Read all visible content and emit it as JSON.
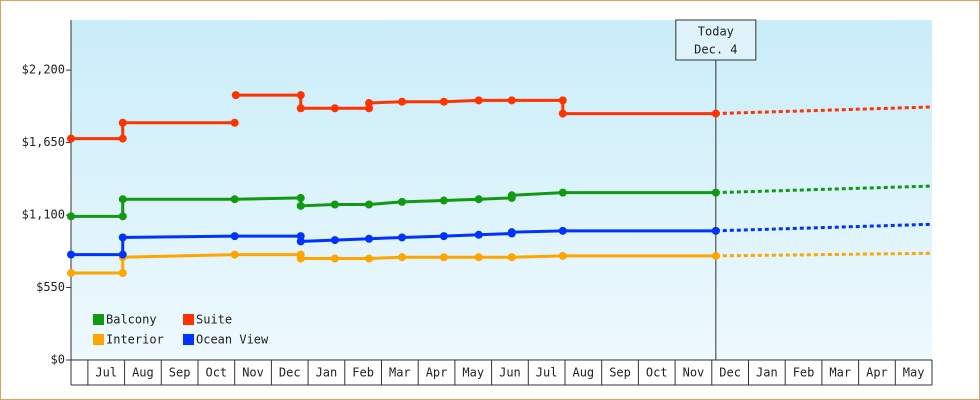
{
  "chart_data": {
    "type": "line",
    "xlim": [
      -0.46,
      23
    ],
    "ylim": [
      0,
      2580
    ],
    "yticks": [
      {
        "value": 0,
        "label": "$0"
      },
      {
        "value": 550,
        "label": "$550"
      },
      {
        "value": 1100,
        "label": "$1,100"
      },
      {
        "value": 1650,
        "label": "$1,650"
      },
      {
        "value": 2200,
        "label": "$2,200"
      }
    ],
    "xticks": [
      0,
      1,
      2,
      3,
      4,
      5,
      6,
      7,
      8,
      9,
      10,
      11,
      12,
      13,
      14,
      15,
      16,
      17,
      18,
      19,
      20,
      21,
      22,
      23
    ],
    "categories": [
      "Jul",
      "Aug",
      "Sep",
      "Oct",
      "Nov",
      "Dec",
      "Jan",
      "Feb",
      "Mar",
      "Apr",
      "May",
      "Jun",
      "Jul",
      "Aug",
      "Sep",
      "Oct",
      "Nov",
      "Dec",
      "Jan",
      "Feb",
      "Mar",
      "Apr",
      "May"
    ],
    "legend": "lower left",
    "annotation": {
      "lines": [
        "Today",
        "Dec. 4"
      ],
      "x": 17.11
    },
    "series": [
      {
        "name": "Balcony",
        "color": "#119911",
        "x": [
          -0.46,
          0.95,
          0.95,
          4.0,
          5.8,
          5.8,
          6.73,
          7.66,
          8.56,
          9.7,
          10.65,
          11.55,
          11.55,
          12.94,
          17.11
        ],
        "values": [
          1090,
          1090,
          1220,
          1220,
          1230,
          1170,
          1180,
          1180,
          1200,
          1210,
          1220,
          1230,
          1250,
          1270,
          1270
        ],
        "forecast_x": [
          17.11,
          23
        ],
        "forecast_values": [
          1270,
          1320
        ]
      },
      {
        "name": "Suite",
        "color": "#ff3300",
        "x": [
          -0.46,
          0.95,
          0.95,
          4.0,
          null,
          4.03,
          5.8,
          5.8,
          6.73,
          7.66,
          7.66,
          8.56,
          9.7,
          10.65,
          11.55,
          12.94,
          12.94,
          17.11
        ],
        "values": [
          1680,
          1680,
          1800,
          1800,
          null,
          2010,
          2010,
          1910,
          1910,
          1910,
          1950,
          1960,
          1960,
          1970,
          1970,
          1970,
          1870,
          1870
        ],
        "forecast_x": [
          17.11,
          23
        ],
        "forecast_values": [
          1870,
          1920
        ]
      },
      {
        "name": "Interior",
        "color": "#ffa500",
        "x": [
          -0.46,
          0.95,
          0.95,
          4.0,
          5.8,
          5.8,
          6.73,
          7.66,
          8.56,
          9.7,
          10.65,
          11.55,
          12.94,
          17.11
        ],
        "values": [
          660,
          660,
          780,
          800,
          800,
          770,
          770,
          770,
          780,
          780,
          780,
          780,
          790,
          790
        ],
        "forecast_x": [
          17.11,
          23
        ],
        "forecast_values": [
          790,
          810
        ]
      },
      {
        "name": "Ocean View",
        "color": "#0033ff",
        "x": [
          -0.46,
          0.95,
          0.95,
          4.0,
          5.8,
          5.8,
          6.73,
          7.66,
          8.56,
          9.7,
          10.65,
          11.55,
          11.55,
          12.94,
          17.11
        ],
        "values": [
          800,
          800,
          930,
          940,
          940,
          900,
          910,
          920,
          930,
          940,
          950,
          960,
          970,
          980,
          980
        ],
        "forecast_x": [
          17.11,
          23
        ],
        "forecast_values": [
          980,
          1030
        ]
      }
    ]
  }
}
